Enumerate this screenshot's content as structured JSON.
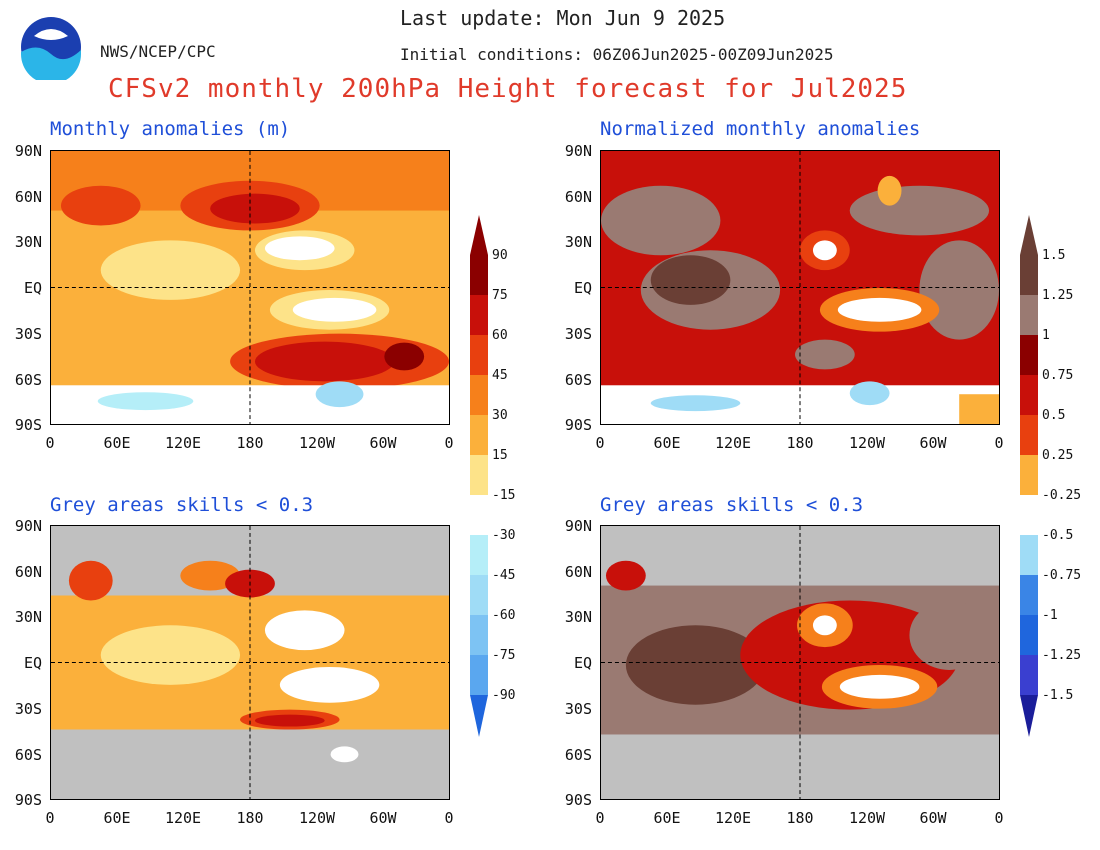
{
  "header": {
    "org": "NWS/NCEP/CPC",
    "last_update": "Last update: Mon Jun 9 2025",
    "initial_conditions": "Initial conditions: 06Z06Jun2025-00Z09Jun2025",
    "title": "CFSv2 monthly 200hPa Height forecast for Jul2025"
  },
  "panels": [
    {
      "id": "tl",
      "title": "Monthly anomalies (m)",
      "masked": false,
      "kind": "raw"
    },
    {
      "id": "tr",
      "title": "Normalized monthly anomalies",
      "masked": false,
      "kind": "norm"
    },
    {
      "id": "bl",
      "title": "Grey areas skills < 0.3",
      "masked": true,
      "kind": "raw"
    },
    {
      "id": "br",
      "title": "Grey areas skills < 0.3",
      "masked": true,
      "kind": "norm"
    }
  ],
  "axes": {
    "lat_labels": [
      "90N",
      "60N",
      "30N",
      "EQ",
      "30S",
      "60S",
      "90S"
    ],
    "lon_labels": [
      "0",
      "60E",
      "120E",
      "180",
      "120W",
      "60W",
      "0"
    ]
  },
  "colorbar_raw": {
    "labels": [
      "90",
      "75",
      "60",
      "45",
      "30",
      "15",
      "-15",
      "-30",
      "-45",
      "-60",
      "-75",
      "-90"
    ]
  },
  "colorbar_norm": {
    "labels": [
      "1.5",
      "1.25",
      "1",
      "0.75",
      "0.5",
      "0.25",
      "-0.25",
      "-0.5",
      "-0.75",
      "-1",
      "-1.25",
      "-1.5"
    ]
  },
  "colors": {
    "warm": [
      "#8b0000",
      "#c8100a",
      "#e8400f",
      "#f6801b",
      "#fbb03b",
      "#fde389"
    ],
    "neutral": "#ffffff",
    "cold": [
      "#b5eef8",
      "#9fdcf6",
      "#7dc3f3",
      "#5aa7ef",
      "#3a85e6",
      "#1f66dd"
    ],
    "norm_top": [
      "#6a3f35",
      "#9a7a72"
    ],
    "norm_bottom": [
      "#3a3fd0",
      "#1b1e9a"
    ],
    "grey_mask": "#c0c0c0",
    "title_red": "#e03a2a",
    "title_blue": "#1f4fd8"
  }
}
